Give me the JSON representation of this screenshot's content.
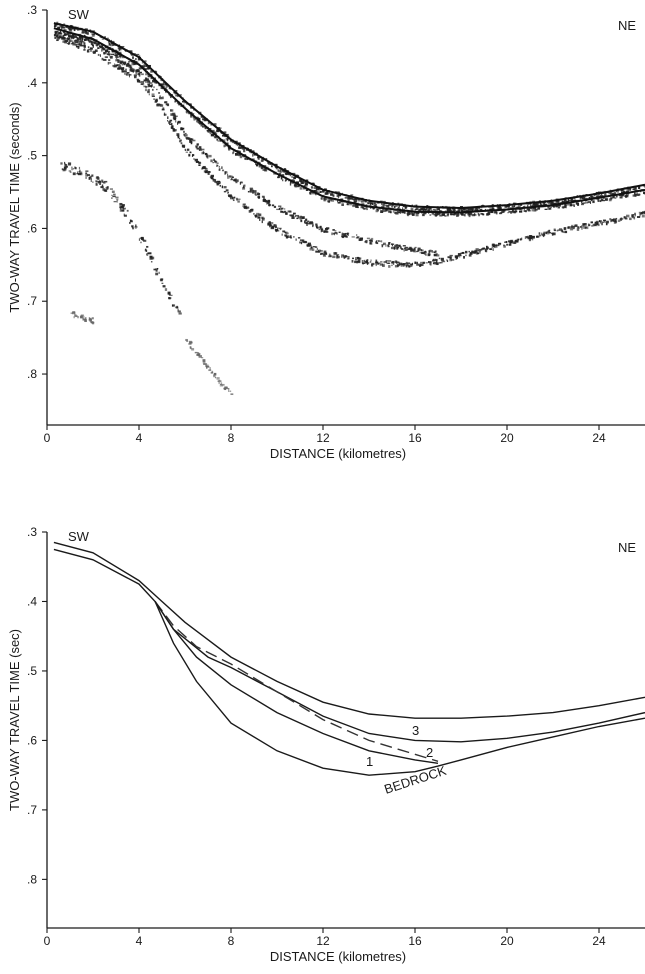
{
  "chart_data": [
    {
      "type": "scatter",
      "panel": "seismic-record",
      "corner_labels": {
        "left": "SW",
        "right": "NE"
      },
      "xlabel": "DISTANCE (kilometres)",
      "ylabel": "TWO-WAY TRAVEL TIME (seconds)",
      "xlim": [
        0,
        26
      ],
      "ylim": [
        0.3,
        0.87
      ],
      "y_inverted": true,
      "x_ticks": [
        "0",
        "4",
        "8",
        "12",
        "16",
        "20",
        "24"
      ],
      "y_ticks": [
        ".3",
        ".4",
        ".5",
        ".6",
        ".7",
        ".8"
      ],
      "series": [
        {
          "x": [
            0.3,
            2,
            4,
            5,
            6,
            8,
            10,
            12,
            14,
            16,
            18,
            20,
            22,
            24,
            26
          ],
          "y": [
            0.318,
            0.33,
            0.365,
            0.395,
            0.425,
            0.478,
            0.515,
            0.547,
            0.562,
            0.57,
            0.572,
            0.568,
            0.562,
            0.552,
            0.54
          ]
        },
        {
          "x": [
            0.3,
            2,
            4,
            5,
            6,
            8,
            10,
            12,
            14,
            16,
            18,
            20,
            22,
            24,
            26
          ],
          "y": [
            0.325,
            0.34,
            0.375,
            0.405,
            0.435,
            0.49,
            0.525,
            0.556,
            0.57,
            0.577,
            0.578,
            0.574,
            0.568,
            0.558,
            0.547
          ]
        },
        {
          "x": [
            0.3,
            2,
            4,
            5,
            6,
            8,
            10,
            12,
            14,
            16,
            17
          ],
          "y": [
            0.33,
            0.345,
            0.385,
            0.42,
            0.47,
            0.53,
            0.57,
            0.6,
            0.615,
            0.628,
            0.633
          ]
        },
        {
          "x": [
            0.3,
            2,
            4,
            5,
            6,
            8,
            10,
            12,
            14,
            16,
            17,
            18,
            20,
            22,
            24,
            26
          ],
          "y": [
            0.335,
            0.355,
            0.395,
            0.435,
            0.49,
            0.555,
            0.6,
            0.632,
            0.645,
            0.648,
            0.643,
            0.635,
            0.618,
            0.603,
            0.59,
            0.578
          ]
        },
        {
          "x": [
            0.5,
            1.5,
            2.5,
            3.5,
            4.2,
            4.8,
            5.3,
            5.8
          ],
          "y": [
            0.51,
            0.52,
            0.54,
            0.58,
            0.62,
            0.66,
            0.69,
            0.72
          ]
        },
        {
          "x": [
            6,
            6.5,
            7,
            7.5,
            8
          ],
          "y": [
            0.75,
            0.77,
            0.79,
            0.81,
            0.825
          ]
        },
        {
          "x": [
            1,
            1.5,
            2
          ],
          "y": [
            0.715,
            0.72,
            0.725
          ]
        }
      ]
    },
    {
      "type": "line",
      "panel": "interpretation",
      "corner_labels": {
        "left": "SW",
        "right": "NE"
      },
      "xlabel": "DISTANCE   (kilometres)",
      "ylabel": "TWO-WAY TRAVEL TIME (sec)",
      "xlim": [
        0,
        26
      ],
      "ylim": [
        0.3,
        0.87
      ],
      "y_inverted": true,
      "x_ticks": [
        "0",
        "4",
        "8",
        "12",
        "16",
        "20",
        "24"
      ],
      "y_ticks": [
        ".3",
        ".4",
        ".5",
        ".6",
        ".7",
        ".8"
      ],
      "annotations": {
        "r3": "3",
        "r2": "2",
        "r1": "1",
        "bedrock": "BEDROCK"
      },
      "series": [
        {
          "name": "3",
          "x": [
            0.3,
            2,
            4,
            5,
            6,
            8,
            10,
            12,
            14,
            16,
            18,
            20,
            22,
            24,
            26
          ],
          "y": [
            0.315,
            0.33,
            0.37,
            0.4,
            0.43,
            0.48,
            0.515,
            0.545,
            0.562,
            0.568,
            0.568,
            0.565,
            0.56,
            0.55,
            0.538
          ]
        },
        {
          "name": "2",
          "x": [
            0.3,
            2,
            4,
            4.7,
            5.5,
            7,
            8,
            10,
            12,
            14,
            16,
            18,
            20,
            22,
            24,
            26
          ],
          "y": [
            0.325,
            0.34,
            0.375,
            0.4,
            0.44,
            0.48,
            0.495,
            0.53,
            0.565,
            0.59,
            0.6,
            0.602,
            0.597,
            0.588,
            0.575,
            0.56
          ]
        },
        {
          "name": "dashed",
          "dash": true,
          "x": [
            4.7,
            5.5,
            6.5,
            8,
            10,
            12,
            14,
            16,
            17
          ],
          "y": [
            0.4,
            0.435,
            0.465,
            0.49,
            0.53,
            0.57,
            0.6,
            0.62,
            0.63
          ]
        },
        {
          "name": "1",
          "x": [
            4.7,
            5.5,
            6.5,
            8,
            10,
            12,
            14,
            16,
            17
          ],
          "y": [
            0.4,
            0.44,
            0.48,
            0.52,
            0.56,
            0.59,
            0.615,
            0.628,
            0.633
          ]
        },
        {
          "name": "BEDROCK",
          "x": [
            4.7,
            5.5,
            6.5,
            8,
            10,
            12,
            14,
            16,
            17,
            18,
            20,
            22,
            24,
            26
          ],
          "y": [
            0.4,
            0.46,
            0.515,
            0.575,
            0.615,
            0.64,
            0.65,
            0.645,
            0.637,
            0.628,
            0.61,
            0.595,
            0.58,
            0.568
          ]
        }
      ]
    }
  ]
}
